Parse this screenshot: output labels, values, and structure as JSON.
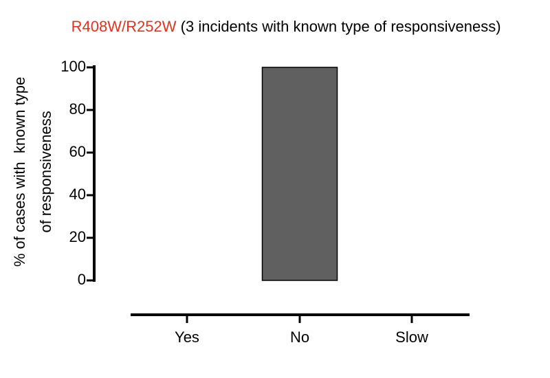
{
  "chart_data": {
    "type": "bar",
    "title": [
      "R408W/R252W",
      "(3 incidents with known type of responsiveness)"
    ],
    "title_color": "#e8311a",
    "ylabel": [
      "% of cases with  known type",
      "of responsiveness"
    ],
    "categories": [
      "Yes",
      "No",
      "Slow"
    ],
    "values": [
      0,
      100,
      0
    ],
    "color": "#606060",
    "ylim": [
      0,
      100
    ],
    "yticks": [
      0,
      20,
      40,
      60,
      80,
      100
    ]
  }
}
